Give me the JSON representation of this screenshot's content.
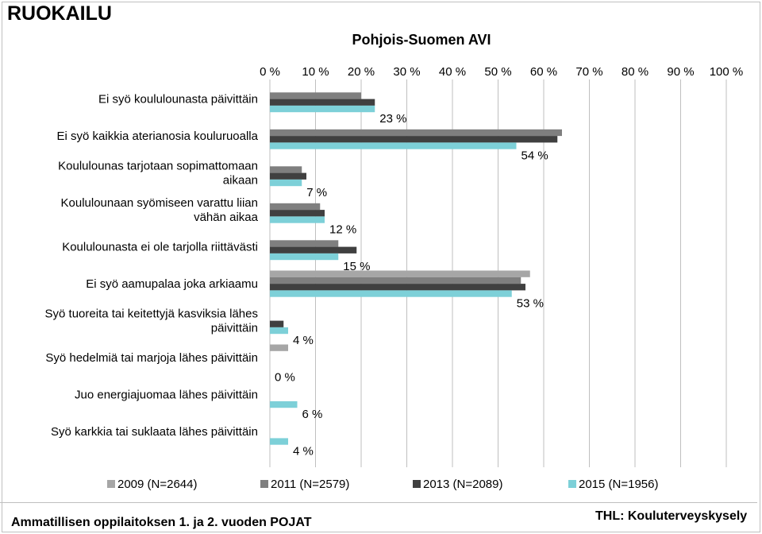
{
  "heading": "RUOKAILU",
  "footer_left": "Ammatillisen oppilaitoksen 1. ja 2. vuoden POJAT",
  "footer_right": "THL: Kouluterveyskysely",
  "chart_data": {
    "type": "bar",
    "orientation": "horizontal",
    "title": "Pohjois-Suomen AVI",
    "xlim": [
      0,
      100
    ],
    "xticks": [
      "0 %",
      "10 %",
      "20 %",
      "30 %",
      "40 %",
      "50 %",
      "60 %",
      "70 %",
      "80 %",
      "90 %",
      "100 %"
    ],
    "grid": true,
    "legend_position": "bottom",
    "categories": [
      [
        "Ei syö koululounasta päivittäin"
      ],
      [
        "Ei syö kaikkia aterianosia kouluruoalla"
      ],
      [
        "Koululounas tarjotaan sopimattomaan",
        "aikaan"
      ],
      [
        "Koululounaan syömiseen varattu liian",
        "vähän aikaa"
      ],
      [
        "Koululounasta ei ole tarjolla riittävästi"
      ],
      [
        "Ei syö aamupalaa joka arkiaamu"
      ],
      [
        "Syö tuoreita tai keitettyjä kasviksia lähes",
        "päivittäin"
      ],
      [
        "Syö hedelmiä tai marjoja lähes päivittäin"
      ],
      [
        "Juo energiajuomaa lähes päivittäin"
      ],
      [
        "Syö karkkia tai suklaata lähes päivittäin"
      ]
    ],
    "series": [
      {
        "name": "2009 (N=2644)",
        "color": "#a6a6a6",
        "values": [
          null,
          null,
          null,
          null,
          null,
          57,
          null,
          4,
          null,
          null
        ]
      },
      {
        "name": "2011 (N=2579)",
        "color": "#7f7f7f",
        "values": [
          20,
          64,
          7,
          11,
          15,
          55,
          null,
          null,
          null,
          null
        ]
      },
      {
        "name": "2013 (N=2089)",
        "color": "#404040",
        "values": [
          23,
          63,
          8,
          12,
          19,
          56,
          3,
          null,
          null,
          null
        ]
      },
      {
        "name": "2015 (N=1956)",
        "color": "#7dd0d8",
        "values": [
          23,
          54,
          7,
          12,
          15,
          53,
          4,
          0,
          6,
          4
        ]
      }
    ],
    "data_labels": [
      "23 %",
      "54 %",
      "7 %",
      "12 %",
      "15 %",
      "53 %",
      "4 %",
      "0 %",
      "6 %",
      "4 %"
    ]
  }
}
